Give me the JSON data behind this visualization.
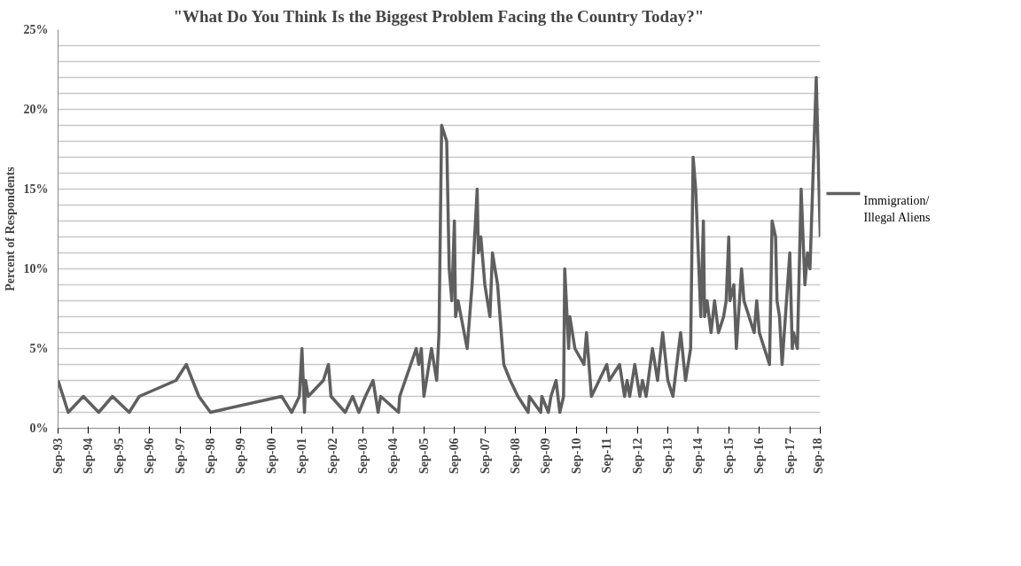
{
  "chart_data": {
    "type": "line",
    "title": "\"What Do You Think Is the Biggest Problem Facing the Country Today?\"",
    "ylabel": "Percent of Respondents",
    "series": [
      {
        "name": "Immigration/\nIllegal Aliens",
        "color": "#5f5f5f",
        "x": [
          "1993-09-01",
          "1994-01-01",
          "1994-07-01",
          "1995-01-01",
          "1995-06-15",
          "1996-01-01",
          "1996-05-01",
          "1997-07-15",
          "1997-11-15",
          "1998-04-15",
          "1998-09-01",
          "2001-01-01",
          "2001-05-01",
          "2001-08-01",
          "2001-09-01",
          "2001-10-01",
          "2001-10-15",
          "2001-11-15",
          "2002-05-15",
          "2002-07-15",
          "2002-08-15",
          "2003-02-01",
          "2003-05-01",
          "2003-07-15",
          "2003-10-01",
          "2004-01-01",
          "2004-03-01",
          "2004-04-01",
          "2004-11-01",
          "2004-11-15",
          "2005-06-01",
          "2005-07-01",
          "2005-08-01",
          "2005-09-01",
          "2005-12-01",
          "2006-02-01",
          "2006-03-01",
          "2006-04-01",
          "2006-06-01",
          "2006-07-01",
          "2006-08-01",
          "2006-09-01",
          "2006-09-15",
          "2006-10-15",
          "2007-02-01",
          "2007-04-01",
          "2007-06-01",
          "2007-06-15",
          "2007-07-15",
          "2007-09-01",
          "2007-11-01",
          "2007-12-01",
          "2008-02-01",
          "2008-03-15",
          "2008-04-15",
          "2008-07-01",
          "2008-10-01",
          "2009-02-01",
          "2009-02-15",
          "2009-07-01",
          "2009-07-15",
          "2009-10-01",
          "2009-11-01",
          "2010-01-01",
          "2010-02-15",
          "2010-04-01",
          "2010-04-15",
          "2010-06-01",
          "2010-06-15",
          "2010-08-15",
          "2010-12-01",
          "2011-01-01",
          "2011-03-01",
          "2011-09-01",
          "2011-10-01",
          "2012-02-01",
          "2012-04-01",
          "2012-05-01",
          "2012-06-01",
          "2012-08-01",
          "2012-10-01",
          "2012-11-01",
          "2012-12-15",
          "2013-03-01",
          "2013-05-01",
          "2013-07-01",
          "2013-09-01",
          "2013-11-01",
          "2014-02-01",
          "2014-04-01",
          "2014-06-01",
          "2014-07-01",
          "2014-08-01",
          "2014-10-01",
          "2014-11-01",
          "2014-11-15",
          "2014-12-15",
          "2015-02-01",
          "2015-03-15",
          "2015-05-01",
          "2015-07-01",
          "2015-08-01",
          "2015-09-01",
          "2015-09-15",
          "2015-11-01",
          "2015-12-01",
          "2016-02-01",
          "2016-03-01",
          "2016-07-01",
          "2016-08-01",
          "2016-09-01",
          "2017-01-01",
          "2017-02-01",
          "2017-03-15",
          "2017-04-01",
          "2017-05-01",
          "2017-06-01",
          "2017-09-01",
          "2017-10-01",
          "2017-10-15",
          "2017-12-01",
          "2018-01-15",
          "2018-03-01",
          "2018-04-01",
          "2018-05-01",
          "2018-07-15",
          "2018-09-01"
        ],
        "values": [
          3,
          1,
          2,
          1,
          2,
          1,
          2,
          3,
          4,
          2,
          1,
          2,
          1,
          2,
          5,
          1,
          3,
          2,
          3,
          4,
          2,
          1,
          2,
          1,
          2,
          3,
          1,
          2,
          1,
          2,
          5,
          4,
          5,
          2,
          5,
          3,
          6,
          19,
          18,
          10,
          8,
          13,
          7,
          8,
          5,
          9,
          15,
          11,
          12,
          9,
          7,
          11,
          9,
          6,
          4,
          3,
          2,
          1,
          2,
          1,
          2,
          1,
          2,
          3,
          1,
          2,
          10,
          5,
          7,
          5,
          4,
          6,
          2,
          4,
          3,
          4,
          2,
          3,
          2,
          4,
          2,
          3,
          2,
          5,
          3,
          6,
          3,
          2,
          6,
          3,
          5,
          17,
          15,
          7,
          13,
          7,
          8,
          6,
          8,
          6,
          7,
          8,
          12,
          8,
          9,
          5,
          10,
          8,
          6,
          8,
          6,
          4,
          13,
          12,
          8,
          7,
          4,
          11,
          5,
          6,
          5,
          15,
          9,
          11,
          10,
          22,
          12
        ]
      }
    ],
    "xlim": [
      "1993-09-01",
      "2018-09-01"
    ],
    "xticks": [
      {
        "value": "1993-09-01",
        "label": "Sep-93"
      },
      {
        "value": "1994-09-01",
        "label": "Sep-94"
      },
      {
        "value": "1995-09-01",
        "label": "Sep-95"
      },
      {
        "value": "1996-09-01",
        "label": "Sep-96"
      },
      {
        "value": "1997-09-01",
        "label": "Sep-97"
      },
      {
        "value": "1998-09-01",
        "label": "Sep-98"
      },
      {
        "value": "1999-09-01",
        "label": "Sep-99"
      },
      {
        "value": "2000-09-01",
        "label": "Sep-00"
      },
      {
        "value": "2001-09-01",
        "label": "Sep-01"
      },
      {
        "value": "2002-09-01",
        "label": "Sep-02"
      },
      {
        "value": "2003-09-01",
        "label": "Sep-03"
      },
      {
        "value": "2004-09-01",
        "label": "Sep-04"
      },
      {
        "value": "2005-09-01",
        "label": "Sep-05"
      },
      {
        "value": "2006-09-01",
        "label": "Sep-06"
      },
      {
        "value": "2007-09-01",
        "label": "Sep-07"
      },
      {
        "value": "2008-09-01",
        "label": "Sep-08"
      },
      {
        "value": "2009-09-01",
        "label": "Sep-09"
      },
      {
        "value": "2010-09-01",
        "label": "Sep-10"
      },
      {
        "value": "2011-09-01",
        "label": "Sep-11"
      },
      {
        "value": "2012-09-01",
        "label": "Sep-12"
      },
      {
        "value": "2013-09-01",
        "label": "Sep-13"
      },
      {
        "value": "2014-09-01",
        "label": "Sep-14"
      },
      {
        "value": "2015-09-01",
        "label": "Sep-15"
      },
      {
        "value": "2016-09-01",
        "label": "Sep-16"
      },
      {
        "value": "2017-09-01",
        "label": "Sep-17"
      },
      {
        "value": "2018-09-01",
        "label": "Sep-18"
      }
    ],
    "ylim": [
      0,
      25
    ],
    "yticks": [
      {
        "value": 0,
        "label": "0%"
      },
      {
        "value": 1,
        "label": null
      },
      {
        "value": 2,
        "label": null
      },
      {
        "value": 3,
        "label": null
      },
      {
        "value": 4,
        "label": null
      },
      {
        "value": 5,
        "label": "5%"
      },
      {
        "value": 6,
        "label": null
      },
      {
        "value": 7,
        "label": null
      },
      {
        "value": 8,
        "label": null
      },
      {
        "value": 9,
        "label": null
      },
      {
        "value": 10,
        "label": "10%"
      },
      {
        "value": 11,
        "label": null
      },
      {
        "value": 12,
        "label": null
      },
      {
        "value": 13,
        "label": null
      },
      {
        "value": 14,
        "label": null
      },
      {
        "value": 15,
        "label": "15%"
      },
      {
        "value": 16,
        "label": null
      },
      {
        "value": 17,
        "label": null
      },
      {
        "value": 18,
        "label": null
      },
      {
        "value": 19,
        "label": null
      },
      {
        "value": 20,
        "label": "20%"
      },
      {
        "value": 21,
        "label": null
      },
      {
        "value": 22,
        "label": null
      },
      {
        "value": 23,
        "label": null
      },
      {
        "value": 24,
        "label": null
      },
      {
        "value": 25,
        "label": "25%"
      }
    ],
    "grid": "y",
    "legend": "right",
    "marker": "none",
    "line_style": "solid"
  }
}
